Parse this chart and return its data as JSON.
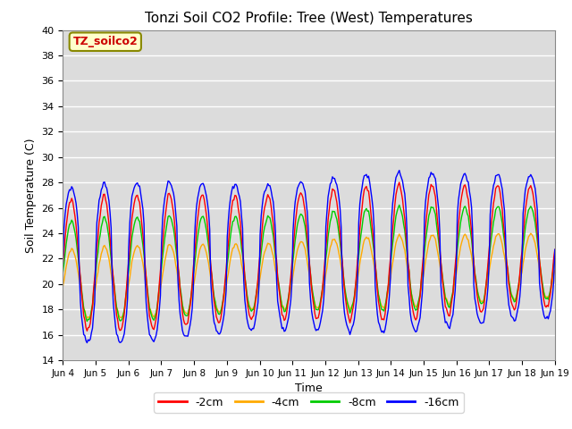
{
  "title": "Tonzi Soil CO2 Profile: Tree (West) Temperatures",
  "xlabel": "Time",
  "ylabel": "Soil Temperature (C)",
  "ylim": [
    14,
    40
  ],
  "yticks": [
    14,
    16,
    18,
    20,
    22,
    24,
    26,
    28,
    30,
    32,
    34,
    36,
    38,
    40
  ],
  "xtick_labels": [
    "Jun 4",
    "Jun 5",
    "Jun 6",
    "Jun 7",
    "Jun 8",
    "Jun 9",
    "Jun 10",
    "Jun 11",
    "Jun 12",
    "Jun 13",
    "Jun 14",
    "Jun 15",
    "Jun 16",
    "Jun 17",
    "Jun 18",
    "Jun 19"
  ],
  "legend_label": "TZ_soilco2",
  "series_labels": [
    "-2cm",
    "-4cm",
    "-8cm",
    "-16cm"
  ],
  "series_colors": [
    "#ff0000",
    "#ffaa00",
    "#00cc00",
    "#0000ff"
  ],
  "plot_bg_color": "#dcdcdc",
  "title_fontsize": 11
}
